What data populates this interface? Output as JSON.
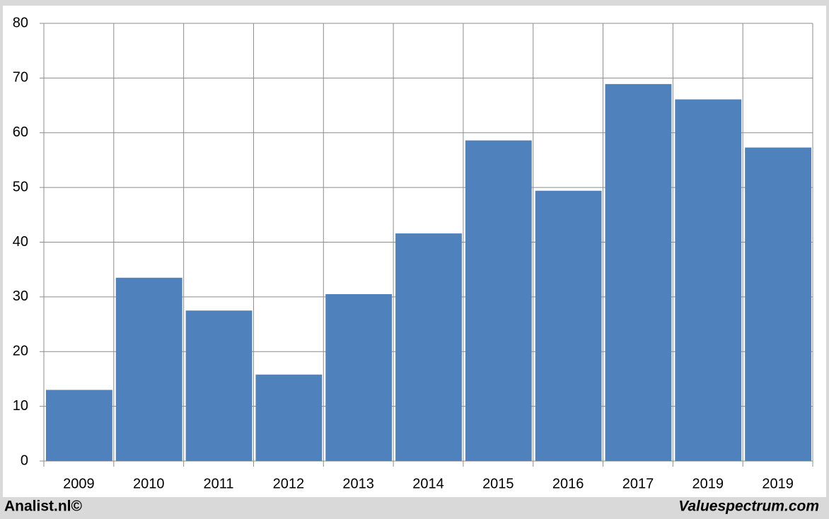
{
  "chart_data": {
    "type": "bar",
    "categories": [
      "2009",
      "2010",
      "2011",
      "2012",
      "2013",
      "2014",
      "2015",
      "2016",
      "2017",
      "2019",
      "2019"
    ],
    "values": [
      13,
      33.5,
      27.5,
      15.8,
      30.5,
      41.6,
      58.6,
      49.4,
      68.9,
      66.1,
      57.3
    ],
    "color": "#4f81bd",
    "ylim": [
      0,
      80
    ],
    "yticks": [
      0,
      10,
      20,
      30,
      40,
      50,
      60,
      70,
      80
    ],
    "grid": true,
    "footer_left": "Analist.nl©",
    "footer_right": "Valuespectrum.com"
  }
}
